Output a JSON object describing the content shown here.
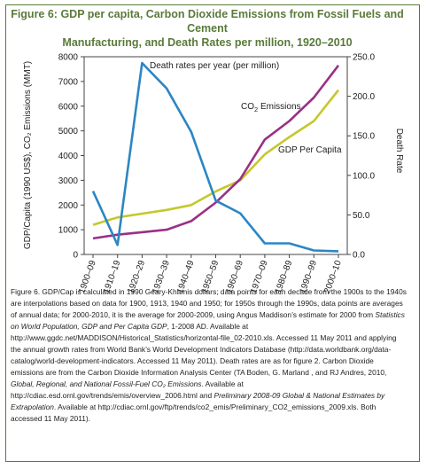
{
  "figure": {
    "title_line1": "Figure 6: GDP per capita, Carbon Dioxide Emissions from Fossil Fuels and Cement",
    "title_line2": "Manufacturing, and Death Rates per million, 1920–2010",
    "colors": {
      "frame": "#5a7a3a",
      "title": "#5a7a3a"
    }
  },
  "chart_data": {
    "type": "line",
    "categories": [
      "1900–09",
      "1910–19",
      "1920–29",
      "1930–39",
      "1940–49",
      "1950–59",
      "1960–69",
      "1970–09",
      "1980–89",
      "1990–99",
      "2000–10"
    ],
    "left_axis": {
      "label": "GDP/Capita (1990 US$), CO₂ Emissions (MMT)",
      "ylim": [
        0,
        8000
      ],
      "ticks": [
        "0",
        "1000",
        "2000",
        "3000",
        "4000",
        "5000",
        "6000",
        "7000",
        "8000"
      ]
    },
    "right_axis": {
      "label": "Death Rate",
      "ylim": [
        0,
        250
      ],
      "ticks": [
        "0.0",
        "50.0",
        "100.0",
        "150.0",
        "200.0",
        "250.0"
      ]
    },
    "series": [
      {
        "name": "GDP Per Capita",
        "axis": "left",
        "color": "#c5c82c",
        "values": [
          1200,
          1500,
          1650,
          1800,
          2000,
          2550,
          3000,
          4050,
          4750,
          5400,
          6650
        ]
      },
      {
        "name": "CO₂ Emissions",
        "axis": "left",
        "color": "#9b2f86",
        "values": [
          650,
          800,
          900,
          1000,
          1350,
          2100,
          3050,
          4650,
          5400,
          6350,
          7650
        ]
      },
      {
        "name": "Death rates per year (per million)",
        "axis": "right",
        "color": "#2b86c4",
        "values": [
          80,
          12,
          242,
          210,
          155,
          68,
          52,
          14,
          14,
          5,
          4
        ]
      }
    ],
    "annotations": {
      "death": "Death rates per year (per million)",
      "co2_prefix": "CO",
      "co2_sub": "2",
      "co2_suffix": " Emissions",
      "gdp": "GDP Per Capita"
    }
  },
  "caption": {
    "p1": "Figure 6. GDP/Cap is calculated in 1990 Geary-Khamis dollars; data points for each decade from the 1900s to the 1940s are interpolations based on data for 1900, 1913, 1940 and 1950; for 1950s through the 1990s, data points are averages of annual data; for 2000-2010, it is the average for 2000-2009, using Angus Maddison’s estimate for 2000 from ",
    "p1_italic": "Statistics on World Population, GDP and Per Capita GDP",
    "p2": ", 1-2008 AD. Available at http://www.ggdc.net/MADDISON/Historical_Statistics/horizontal-file_02-2010.xls. Accessed 11 May 2011 and applying the annual growth rates from World Bank’s World Development Indicators Database (http://data.worldbank.org/data-catalog/world-development-indicators. Accessed 11 May 2011). Death rates are as for figure 2. Carbon Dioxide emissions are from the Carbon Dioxide Information Analysis Center (TA Boden, G. Marland , and RJ Andres, 2010, ",
    "p2_italic": "Global, Regional, and National Fossil-Fuel CO₂ Emissions",
    "p3": ". Available at http://cdiac.esd.ornl.gov/trends/emis/overview_2006.html and ",
    "p3_italic": "Preliminary 2008-09 Global & National Estimates by Extrapolation",
    "p4": ". Available at http://cdiac.ornl.gov/ftp/trends/co2_emis/Preliminary_CO2_emissions_2009.xls. Both accessed 11 May 2011)."
  }
}
